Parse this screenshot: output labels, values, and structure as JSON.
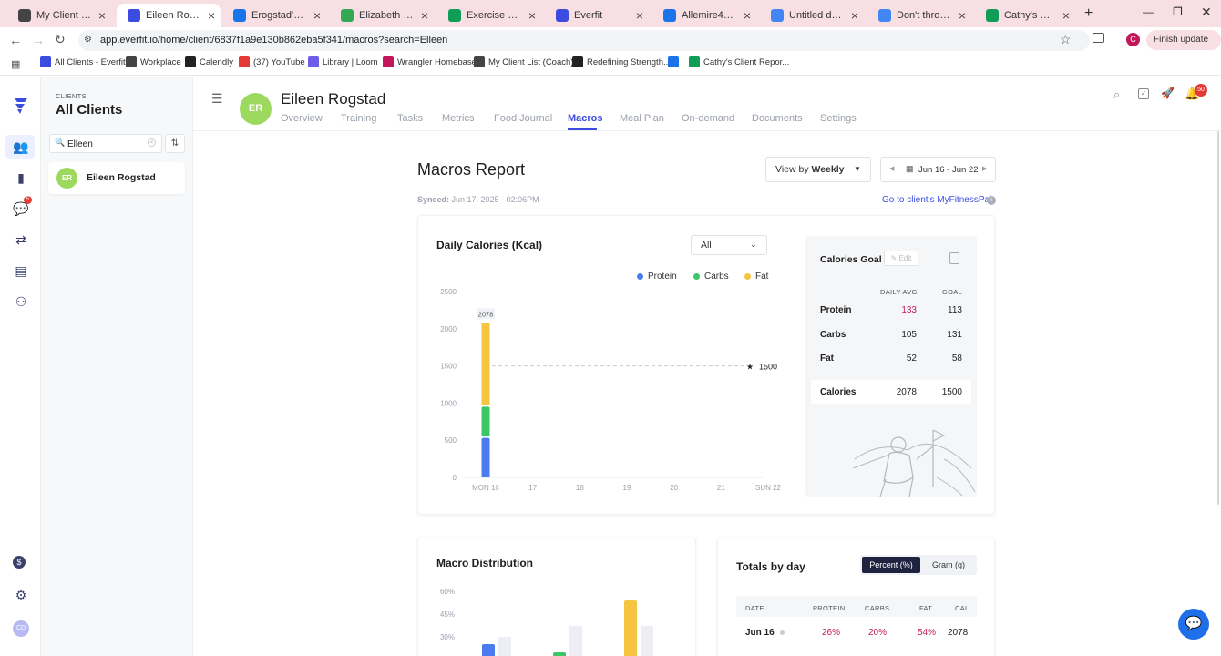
{
  "browser": {
    "tabs": [
      {
        "title": "My Client List (Co",
        "active": false,
        "color": "#444444"
      },
      {
        "title": "Eileen Rogstad - M",
        "active": true,
        "color": "#3d4ce0"
      },
      {
        "title": "Erogstad's Food D",
        "active": false,
        "color": "#1a73e8"
      },
      {
        "title": "Elizabeth Steinber",
        "active": false,
        "color": "#34a853"
      },
      {
        "title": "Exercise Swaps - G",
        "active": false,
        "color": "#0f9d58"
      },
      {
        "title": "Everfit",
        "active": false,
        "color": "#3d4ce0"
      },
      {
        "title": "Allemire421's Foo",
        "active": false,
        "color": "#1a73e8"
      },
      {
        "title": "Untitled documen",
        "active": false,
        "color": "#4285f4"
      },
      {
        "title": "Don't throw in the",
        "active": false,
        "color": "#4285f4"
      },
      {
        "title": "Cathy's Client Rep",
        "active": false,
        "color": "#0f9d58"
      }
    ],
    "url": "app.everfit.io/home/client/6837f1a9e130b862eba5f341/macros?search=Elleen",
    "finish_update": "Finish update",
    "profile_initial": "C",
    "bookmarks": [
      "All Clients - Everfit",
      "Workplace",
      "Calendly",
      "(37) YouTube",
      "Library | Loom",
      "Wrangler Homebase",
      "My Client List (Coach)",
      "Redefining Strength...",
      "",
      "Cathy's Client Repor..."
    ]
  },
  "rail": {
    "messages_badge": "5",
    "avatar_initials": "CD"
  },
  "clients": {
    "section_label": "CLIENTS",
    "title": "All Clients",
    "search_value": "Elleen",
    "list": [
      {
        "initials": "ER",
        "name": "Eileen Rogstad"
      }
    ]
  },
  "client_header": {
    "initials": "ER",
    "name": "Eileen Rogstad",
    "tabs": [
      "Overview",
      "Training",
      "Tasks",
      "Metrics",
      "Food Journal",
      "Macros",
      "Meal Plan",
      "On-demand",
      "Documents",
      "Settings"
    ],
    "active_tab": "Macros",
    "notification_count": "50"
  },
  "report": {
    "title": "Macros Report",
    "view_by_prefix": "View by",
    "view_by_value": "Weekly",
    "date_range": "Jun 16 - Jun 22",
    "synced_label": "Synced:",
    "synced_value": "Jun 17, 2025 - 02:06PM",
    "mfp_link": "Go to client's MyFitnessPal"
  },
  "daily_calories": {
    "title": "Daily Calories (Kcal)",
    "filter": "All",
    "goal_label": "1500",
    "bar_total_label": "2078"
  },
  "chart_data": {
    "type": "bar",
    "stacked": true,
    "title": "Daily Calories (Kcal)",
    "categories": [
      "MON 16",
      "17",
      "18",
      "19",
      "20",
      "21",
      "SUN 22"
    ],
    "series": [
      {
        "name": "Protein",
        "color": "#4a7cf0",
        "values": [
          532,
          0,
          0,
          0,
          0,
          0,
          0
        ]
      },
      {
        "name": "Carbs",
        "color": "#3cc766",
        "values": [
          420,
          0,
          0,
          0,
          0,
          0,
          0
        ]
      },
      {
        "name": "Fat",
        "color": "#f5c542",
        "values": [
          1126,
          0,
          0,
          0,
          0,
          0,
          0
        ]
      }
    ],
    "yticks": [
      "0",
      "500",
      "1000",
      "1500",
      "2000",
      "2500"
    ],
    "ylim": [
      0,
      2500
    ],
    "goal_line": 1500,
    "legend": "top-right"
  },
  "calories_goal": {
    "title": "Calories Goal",
    "edit_label": "Edit",
    "col_daily": "DAILY AVG",
    "col_goal": "GOAL",
    "rows": [
      {
        "label": "Protein",
        "avg": "133",
        "goal": "113",
        "over": true
      },
      {
        "label": "Carbs",
        "avg": "105",
        "goal": "131",
        "over": false
      },
      {
        "label": "Fat",
        "avg": "52",
        "goal": "58",
        "over": false
      }
    ],
    "total": {
      "label": "Calories",
      "avg": "2078",
      "goal": "1500"
    }
  },
  "macro_distribution": {
    "title": "Macro Distribution",
    "yticks": [
      "60%",
      "45%",
      "30%"
    ]
  },
  "totals_by_day": {
    "title": "Totals by day",
    "toggle_percent": "Percent (%)",
    "toggle_gram": "Gram (g)",
    "columns": [
      "DATE",
      "PROTEIN",
      "CARBS",
      "FAT",
      "CAL"
    ],
    "rows": [
      {
        "date": "Jun 16",
        "protein": "26%",
        "carbs": "20%",
        "fat": "54%",
        "cal": "2078"
      }
    ]
  }
}
